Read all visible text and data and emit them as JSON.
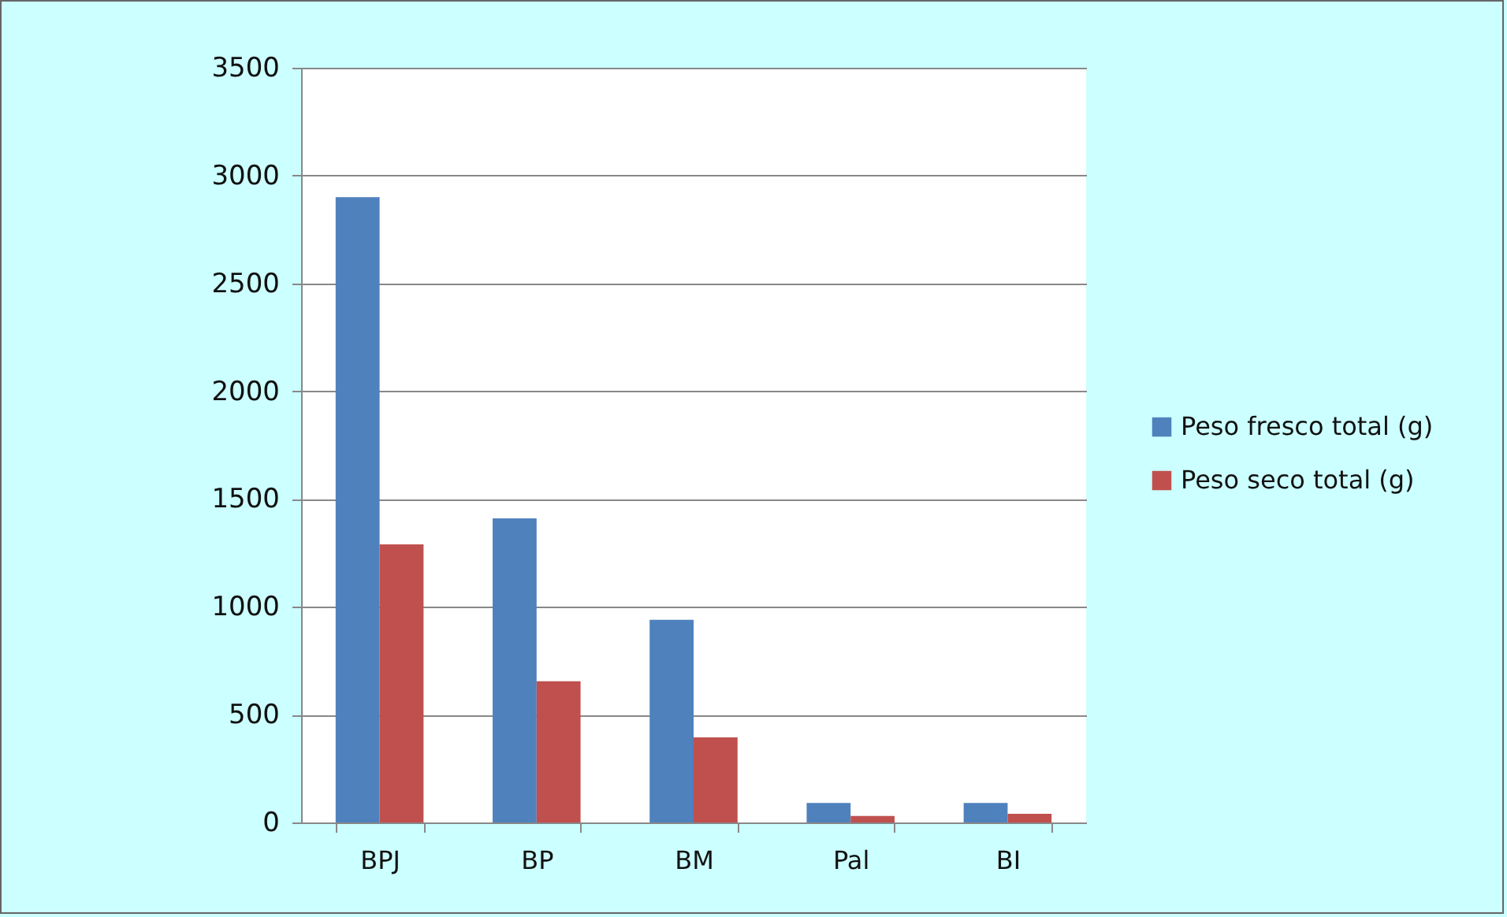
{
  "chart_data": {
    "type": "bar",
    "categories": [
      "BPJ",
      "BP",
      "BM",
      "Pal",
      "BI"
    ],
    "series": [
      {
        "name": "Peso fresco total (g)",
        "color": "#4f81bd",
        "values": [
          2900,
          1410,
          940,
          90,
          90
        ]
      },
      {
        "name": "Peso seco total (g)",
        "color": "#c0504d",
        "values": [
          1290,
          655,
          395,
          30,
          40
        ]
      }
    ],
    "ylim": [
      0,
      3500
    ],
    "yticks": [
      0,
      500,
      1000,
      1500,
      2000,
      2500,
      3000,
      3500
    ],
    "grid": "y",
    "legend": "right"
  }
}
